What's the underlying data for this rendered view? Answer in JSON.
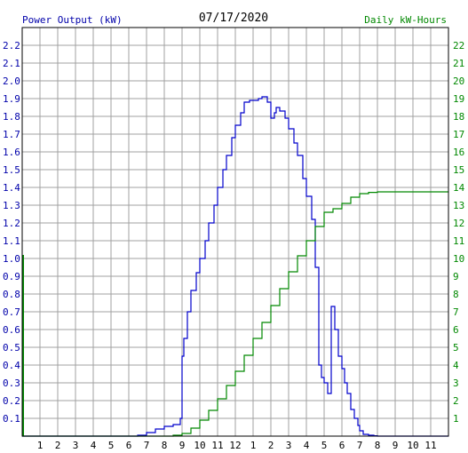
{
  "chart_data": {
    "type": "line",
    "title": "07/17/2020",
    "left_axis_label": "Power Output (kW)",
    "right_axis_label": "Daily kW-Hours",
    "x_tick_labels": [
      "1",
      "2",
      "3",
      "4",
      "5",
      "6",
      "7",
      "8",
      "9",
      "10",
      "11",
      "12",
      "1",
      "2",
      "3",
      "4",
      "5",
      "6",
      "7",
      "8",
      "9",
      "10",
      "11"
    ],
    "x_range_hours": [
      0,
      24
    ],
    "y_left_range": [
      0,
      2.3
    ],
    "y_left_ticks": [
      "0.1",
      "0.2",
      "0.3",
      "0.4",
      "0.5",
      "0.6",
      "0.7",
      "0.8",
      "0.9",
      "1.0",
      "1.1",
      "1.2",
      "1.3",
      "1.4",
      "1.5",
      "1.6",
      "1.7",
      "1.8",
      "1.9",
      "2.0",
      "2.1",
      "2.2"
    ],
    "y_right_range": [
      0,
      23
    ],
    "y_right_ticks": [
      "1",
      "2",
      "3",
      "4",
      "5",
      "6",
      "7",
      "8",
      "9",
      "10",
      "11",
      "12",
      "13",
      "14",
      "15",
      "16",
      "17",
      "18",
      "19",
      "20",
      "21",
      "22"
    ],
    "grid": true,
    "colors": {
      "power": "#0000cc",
      "energy": "#008800",
      "grid": "#a0a0a0",
      "left_label": "#0000aa",
      "right_label": "#008800",
      "axis": "#000000"
    },
    "series": [
      {
        "name": "Power Output (kW)",
        "axis": "left",
        "x": [
          0,
          6,
          6.5,
          7,
          7.5,
          8,
          8.5,
          8.9,
          9,
          9.1,
          9.3,
          9.5,
          9.8,
          10,
          10.3,
          10.5,
          10.8,
          11,
          11.3,
          11.5,
          11.8,
          12,
          12.3,
          12.5,
          12.8,
          13,
          13.3,
          13.5,
          13.8,
          14,
          14.2,
          14.3,
          14.5,
          14.8,
          15,
          15.3,
          15.5,
          15.8,
          16,
          16.3,
          16.5,
          16.7,
          16.85,
          17,
          17.2,
          17.4,
          17.6,
          17.8,
          18,
          18.15,
          18.3,
          18.5,
          18.7,
          18.9,
          19,
          19.2,
          19.5,
          19.8,
          20,
          20.3,
          20.5,
          21,
          24
        ],
        "y": [
          0,
          0,
          0.005,
          0.02,
          0.04,
          0.055,
          0.065,
          0.1,
          0.45,
          0.55,
          0.7,
          0.82,
          0.92,
          1.0,
          1.1,
          1.2,
          1.3,
          1.4,
          1.5,
          1.58,
          1.68,
          1.75,
          1.82,
          1.88,
          1.89,
          1.89,
          1.9,
          1.91,
          1.88,
          1.79,
          1.82,
          1.85,
          1.83,
          1.79,
          1.73,
          1.65,
          1.58,
          1.45,
          1.35,
          1.22,
          0.95,
          0.4,
          0.33,
          0.3,
          0.24,
          0.73,
          0.6,
          0.45,
          0.38,
          0.3,
          0.24,
          0.15,
          0.1,
          0.06,
          0.03,
          0.01,
          0.005,
          0.002,
          0.0,
          0.0,
          0.0,
          0.0,
          0.0
        ]
      },
      {
        "name": "Daily kW-Hours",
        "axis": "right",
        "x": [
          0,
          8,
          8.5,
          9,
          9.5,
          10,
          10.5,
          11,
          11.5,
          12,
          12.5,
          13,
          13.5,
          14,
          14.5,
          15,
          15.5,
          16,
          16.5,
          17,
          17.5,
          18,
          18.5,
          19,
          19.5,
          20,
          24
        ],
        "y": [
          0,
          0,
          0.05,
          0.15,
          0.45,
          0.9,
          1.45,
          2.1,
          2.85,
          3.65,
          4.55,
          5.5,
          6.4,
          7.35,
          8.3,
          9.25,
          10.15,
          11.0,
          11.8,
          12.6,
          12.8,
          13.1,
          13.45,
          13.65,
          13.72,
          13.75,
          13.75
        ]
      }
    ]
  }
}
